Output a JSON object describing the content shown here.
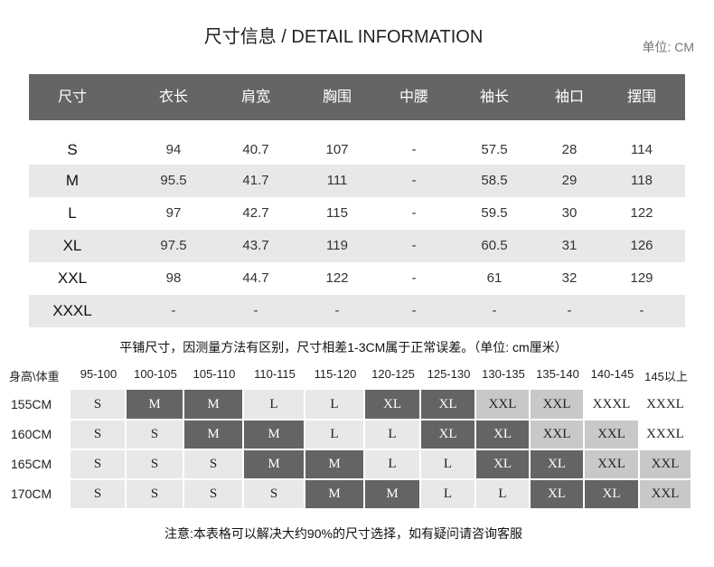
{
  "title": "尺寸信息 / DETAIL INFORMATION",
  "unit": "单位: CM",
  "measurements": {
    "headers": [
      "尺寸",
      "衣长",
      "肩宽",
      "胸围",
      "中腰",
      "袖长",
      "袖口",
      "摆围"
    ],
    "rows": [
      [
        "S",
        "94",
        "40.7",
        "107",
        "-",
        "57.5",
        "28",
        "114"
      ],
      [
        "M",
        "95.5",
        "41.7",
        "111",
        "-",
        "58.5",
        "29",
        "118"
      ],
      [
        "L",
        "97",
        "42.7",
        "115",
        "-",
        "59.5",
        "30",
        "122"
      ],
      [
        "XL",
        "97.5",
        "43.7",
        "119",
        "-",
        "60.5",
        "31",
        "126"
      ],
      [
        "XXL",
        "98",
        "44.7",
        "122",
        "-",
        "61",
        "32",
        "129"
      ],
      [
        "XXXL",
        "-",
        "-",
        "-",
        "-",
        "-",
        "-",
        "-"
      ]
    ]
  },
  "note_measure": "平铺尺寸，因测量方法有区别，尺寸相差1-3CM属于正常误差。（单位: cm厘米）",
  "recommend": {
    "corner": "身高\\体重",
    "weights": [
      "95-100",
      "100-105",
      "105-110",
      "110-115",
      "115-120",
      "120-125",
      "125-130",
      "130-135",
      "135-140",
      "140-145",
      "145以上"
    ],
    "rows": [
      {
        "height": "155CM",
        "sizes": [
          "S",
          "M",
          "M",
          "L",
          "L",
          "XL",
          "XL",
          "XXL",
          "XXL",
          "XXXL",
          "XXXL"
        ],
        "shades": [
          "l",
          "d",
          "d",
          "l",
          "l",
          "d",
          "d",
          "m",
          "m",
          "w",
          "w"
        ]
      },
      {
        "height": "160CM",
        "sizes": [
          "S",
          "S",
          "M",
          "M",
          "L",
          "L",
          "XL",
          "XL",
          "XXL",
          "XXL",
          "XXXL"
        ],
        "shades": [
          "l",
          "l",
          "d",
          "d",
          "l",
          "l",
          "d",
          "d",
          "m",
          "m",
          "w"
        ]
      },
      {
        "height": "165CM",
        "sizes": [
          "S",
          "S",
          "S",
          "M",
          "M",
          "L",
          "L",
          "XL",
          "XL",
          "XXL",
          "XXL"
        ],
        "shades": [
          "l",
          "l",
          "l",
          "d",
          "d",
          "l",
          "l",
          "d",
          "d",
          "m",
          "m"
        ]
      },
      {
        "height": "170CM",
        "sizes": [
          "S",
          "S",
          "S",
          "S",
          "M",
          "M",
          "L",
          "L",
          "XL",
          "XL",
          "XXL"
        ],
        "shades": [
          "l",
          "l",
          "l",
          "l",
          "d",
          "d",
          "l",
          "l",
          "d",
          "d",
          "m"
        ]
      }
    ],
    "colors": {
      "dark": "#646464",
      "light": "#e9e8e9",
      "mid": "#c8c8c8",
      "white": "#ffffff"
    }
  },
  "note_bottom": "注意:本表格可以解决大约90%的尺寸选择，如有疑问请咨询客服"
}
